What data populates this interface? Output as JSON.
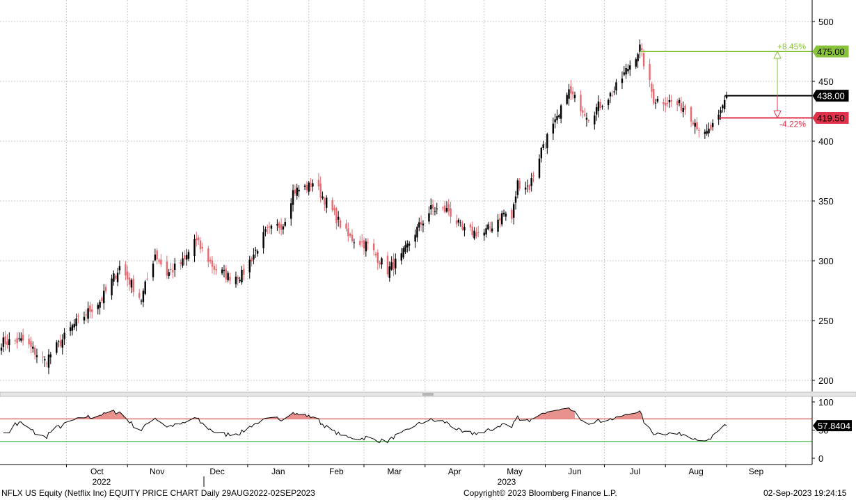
{
  "chart_data": [
    {
      "type": "candlestick",
      "x_start": "2022-08-29",
      "x_end": "2023-09-01",
      "ylim": [
        190,
        520
      ],
      "y_ticks": [
        200,
        250,
        300,
        350,
        400,
        450,
        500
      ],
      "grid": true,
      "anchors": [
        [
          "2022-08-29",
          232
        ],
        [
          "2022-09-09",
          233
        ],
        [
          "2022-09-20",
          216
        ],
        [
          "2022-09-30",
          236
        ],
        [
          "2022-10-04",
          245
        ],
        [
          "2022-10-19",
          268
        ],
        [
          "2022-10-28",
          295
        ],
        [
          "2022-11-08",
          268
        ],
        [
          "2022-11-15",
          306
        ],
        [
          "2022-11-21",
          289
        ],
        [
          "2022-11-30",
          300
        ],
        [
          "2022-12-05",
          318
        ],
        [
          "2022-12-15",
          294
        ],
        [
          "2022-12-22",
          287
        ],
        [
          "2022-12-29",
          288
        ],
        [
          "2023-01-10",
          323
        ],
        [
          "2023-01-19",
          331
        ],
        [
          "2023-01-24",
          358
        ],
        [
          "2023-02-01",
          362
        ],
        [
          "2023-02-03",
          366
        ],
        [
          "2023-02-10",
          349
        ],
        [
          "2023-02-21",
          320
        ],
        [
          "2023-03-03",
          313
        ],
        [
          "2023-03-13",
          292
        ],
        [
          "2023-03-20",
          303
        ],
        [
          "2023-03-27",
          324
        ],
        [
          "2023-04-04",
          343
        ],
        [
          "2023-04-13",
          342
        ],
        [
          "2023-04-20",
          325
        ],
        [
          "2023-05-01",
          323
        ],
        [
          "2023-05-11",
          340
        ],
        [
          "2023-05-15",
          335
        ],
        [
          "2023-05-18",
          365
        ],
        [
          "2023-05-24",
          362
        ],
        [
          "2023-05-31",
          398
        ],
        [
          "2023-06-08",
          420
        ],
        [
          "2023-06-12",
          443
        ],
        [
          "2023-06-23",
          421
        ],
        [
          "2023-07-06",
          442
        ],
        [
          "2023-07-19",
          478
        ],
        [
          "2023-07-26",
          435
        ],
        [
          "2023-08-03",
          433
        ],
        [
          "2023-08-11",
          428
        ],
        [
          "2023-08-16",
          416
        ],
        [
          "2023-08-21",
          404
        ],
        [
          "2023-08-28",
          418
        ],
        [
          "2023-09-01",
          439
        ]
      ],
      "last_price": {
        "value": 438.0,
        "label": "438.00",
        "color": "#000000"
      },
      "targets": [
        {
          "value": 475.0,
          "label": "475.00",
          "pct": "+8.45%",
          "color": "#88c23a"
        },
        {
          "value": 419.5,
          "label": "419.50",
          "pct": "-4.22%",
          "color": "#e0324a"
        }
      ],
      "up_color": "#000000",
      "down_color": "#e56b72"
    },
    {
      "type": "line",
      "name_hidden": "oscillator",
      "ylim": [
        -5,
        110
      ],
      "y_ticks": [
        0,
        50,
        100
      ],
      "upper_band": 70,
      "lower_band": 30,
      "upper_color": "#d22c2c",
      "lower_color": "#24b324",
      "last_value": {
        "value": 57.8404,
        "label": "57.8404"
      }
    }
  ],
  "axis": {
    "months": [
      "Oct",
      "Nov",
      "Dec",
      "Jan",
      "Feb",
      "Mar",
      "Apr",
      "May",
      "Jun",
      "Jul",
      "Aug",
      "Sep"
    ],
    "years": [
      "2022",
      "2023"
    ]
  },
  "footer": {
    "title": "NFLX US Equity (Netflix Inc) EQUITY PRICE CHART  Daily 29AUG2022-02SEP2023",
    "copyright": "Copyright© 2023 Bloomberg Finance L.P.",
    "timestamp": "02-Sep-2023 19:24:15"
  }
}
